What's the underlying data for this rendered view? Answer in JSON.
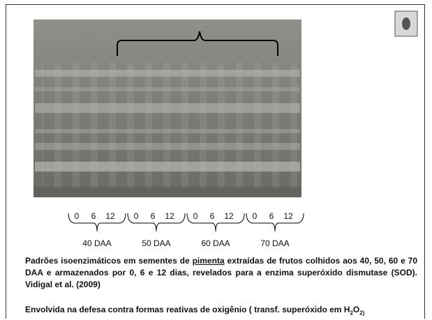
{
  "groups": [
    {
      "label": "40 DAA",
      "days": [
        "0",
        "6",
        "12"
      ]
    },
    {
      "label": "50 DAA",
      "days": [
        "0",
        "6",
        "12"
      ]
    },
    {
      "label": "60 DAA",
      "days": [
        "0",
        "6",
        "12"
      ]
    },
    {
      "label": "70 DAA",
      "days": [
        "0",
        "6",
        "12"
      ]
    }
  ],
  "caption": {
    "before": "Padrões isoenzimáticos em sementes de ",
    "underlined": "pimenta",
    "after": " extraídas de frutos colhidos aos 40, 50, 60 e 70 DAA e armazenados por 0, 6 e 12 dias, revelados para a enzima superóxido dismutase (SOD). Vidigal et al. (2009)"
  },
  "note": {
    "text": "Envolvida na defesa contra formas reativas de oxigênio ( transf. superóxido em H",
    "sub1": "2",
    "mid": "O",
    "sub2": "2)"
  }
}
